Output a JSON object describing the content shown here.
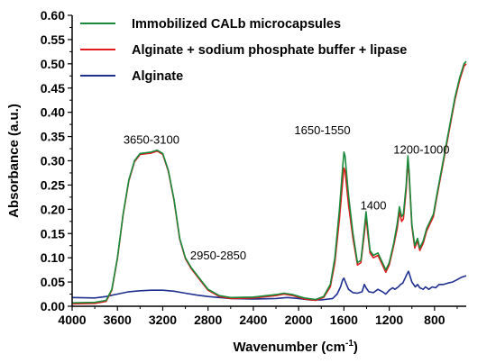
{
  "chart_data": {
    "type": "line",
    "xlabel_main": "Wavenumber (cm",
    "xlabel_sup": "-1",
    "xlabel_end": ")",
    "ylabel": "Absorbance (a.u.)",
    "xlim": [
      4000,
      520
    ],
    "ylim": [
      0,
      0.6
    ],
    "x_reversed": true,
    "xticks": [
      4000,
      3600,
      3200,
      2800,
      2400,
      2000,
      1600,
      1200,
      800
    ],
    "yticks": [
      0.0,
      0.05,
      0.1,
      0.15,
      0.2,
      0.25,
      0.3,
      0.35,
      0.4,
      0.45,
      0.5,
      0.55,
      0.6
    ],
    "xtick_labels": [
      "4000",
      "3600",
      "3200",
      "2800",
      "2400",
      "2000",
      "1600",
      "1200",
      "800"
    ],
    "ytick_labels": [
      "0.00",
      "0.05",
      "0.10",
      "0.15",
      "0.20",
      "0.25",
      "0.30",
      "0.35",
      "0.40",
      "0.45",
      "0.50",
      "0.55",
      "0.60"
    ],
    "legend_position": "top-right",
    "series": [
      {
        "name": "Immobilized CALb microcapsules",
        "color": "#1a8a3c",
        "points": [
          [
            4000,
            0.007
          ],
          [
            3800,
            0.008
          ],
          [
            3700,
            0.012
          ],
          [
            3650,
            0.035
          ],
          [
            3600,
            0.1
          ],
          [
            3550,
            0.19
          ],
          [
            3500,
            0.26
          ],
          [
            3450,
            0.3
          ],
          [
            3400,
            0.315
          ],
          [
            3300,
            0.318
          ],
          [
            3250,
            0.322
          ],
          [
            3200,
            0.315
          ],
          [
            3150,
            0.28
          ],
          [
            3100,
            0.22
          ],
          [
            3050,
            0.14
          ],
          [
            3000,
            0.1
          ],
          [
            2950,
            0.08
          ],
          [
            2900,
            0.065
          ],
          [
            2850,
            0.05
          ],
          [
            2800,
            0.035
          ],
          [
            2700,
            0.022
          ],
          [
            2600,
            0.018
          ],
          [
            2400,
            0.019
          ],
          [
            2200,
            0.024
          ],
          [
            2130,
            0.027
          ],
          [
            2050,
            0.024
          ],
          [
            1950,
            0.017
          ],
          [
            1850,
            0.014
          ],
          [
            1780,
            0.02
          ],
          [
            1720,
            0.045
          ],
          [
            1680,
            0.1
          ],
          [
            1640,
            0.2
          ],
          [
            1610,
            0.29
          ],
          [
            1600,
            0.318
          ],
          [
            1590,
            0.31
          ],
          [
            1560,
            0.23
          ],
          [
            1520,
            0.15
          ],
          [
            1480,
            0.09
          ],
          [
            1450,
            0.095
          ],
          [
            1420,
            0.16
          ],
          [
            1405,
            0.195
          ],
          [
            1390,
            0.16
          ],
          [
            1370,
            0.115
          ],
          [
            1340,
            0.105
          ],
          [
            1300,
            0.11
          ],
          [
            1260,
            0.09
          ],
          [
            1230,
            0.075
          ],
          [
            1200,
            0.09
          ],
          [
            1160,
            0.13
          ],
          [
            1130,
            0.17
          ],
          [
            1110,
            0.205
          ],
          [
            1090,
            0.185
          ],
          [
            1075,
            0.19
          ],
          [
            1050,
            0.25
          ],
          [
            1035,
            0.31
          ],
          [
            1025,
            0.28
          ],
          [
            1000,
            0.17
          ],
          [
            975,
            0.125
          ],
          [
            950,
            0.14
          ],
          [
            930,
            0.12
          ],
          [
            900,
            0.135
          ],
          [
            870,
            0.16
          ],
          [
            840,
            0.175
          ],
          [
            810,
            0.19
          ],
          [
            780,
            0.23
          ],
          [
            740,
            0.28
          ],
          [
            700,
            0.33
          ],
          [
            660,
            0.38
          ],
          [
            620,
            0.43
          ],
          [
            580,
            0.47
          ],
          [
            540,
            0.5
          ],
          [
            520,
            0.505
          ]
        ]
      },
      {
        "name": "Alginate + sodium phosphate buffer + lipase",
        "color": "#e31a1c",
        "points": [
          [
            4000,
            0.005
          ],
          [
            3800,
            0.006
          ],
          [
            3700,
            0.01
          ],
          [
            3650,
            0.033
          ],
          [
            3600,
            0.098
          ],
          [
            3550,
            0.188
          ],
          [
            3500,
            0.258
          ],
          [
            3450,
            0.298
          ],
          [
            3400,
            0.313
          ],
          [
            3300,
            0.316
          ],
          [
            3250,
            0.32
          ],
          [
            3200,
            0.313
          ],
          [
            3150,
            0.278
          ],
          [
            3100,
            0.218
          ],
          [
            3050,
            0.138
          ],
          [
            3000,
            0.098
          ],
          [
            2950,
            0.078
          ],
          [
            2900,
            0.063
          ],
          [
            2850,
            0.048
          ],
          [
            2800,
            0.033
          ],
          [
            2700,
            0.02
          ],
          [
            2600,
            0.016
          ],
          [
            2400,
            0.017
          ],
          [
            2200,
            0.022
          ],
          [
            2130,
            0.025
          ],
          [
            2050,
            0.022
          ],
          [
            1950,
            0.015
          ],
          [
            1850,
            0.012
          ],
          [
            1780,
            0.018
          ],
          [
            1720,
            0.04
          ],
          [
            1680,
            0.09
          ],
          [
            1640,
            0.18
          ],
          [
            1610,
            0.26
          ],
          [
            1600,
            0.285
          ],
          [
            1590,
            0.28
          ],
          [
            1560,
            0.21
          ],
          [
            1520,
            0.14
          ],
          [
            1480,
            0.085
          ],
          [
            1450,
            0.09
          ],
          [
            1420,
            0.15
          ],
          [
            1405,
            0.185
          ],
          [
            1390,
            0.15
          ],
          [
            1370,
            0.11
          ],
          [
            1340,
            0.1
          ],
          [
            1300,
            0.105
          ],
          [
            1260,
            0.085
          ],
          [
            1230,
            0.07
          ],
          [
            1200,
            0.085
          ],
          [
            1160,
            0.125
          ],
          [
            1130,
            0.16
          ],
          [
            1110,
            0.195
          ],
          [
            1090,
            0.175
          ],
          [
            1075,
            0.18
          ],
          [
            1050,
            0.24
          ],
          [
            1035,
            0.3
          ],
          [
            1025,
            0.27
          ],
          [
            1000,
            0.165
          ],
          [
            975,
            0.12
          ],
          [
            950,
            0.135
          ],
          [
            930,
            0.115
          ],
          [
            900,
            0.13
          ],
          [
            870,
            0.155
          ],
          [
            840,
            0.17
          ],
          [
            810,
            0.185
          ],
          [
            780,
            0.225
          ],
          [
            740,
            0.275
          ],
          [
            700,
            0.325
          ],
          [
            660,
            0.375
          ],
          [
            620,
            0.425
          ],
          [
            580,
            0.465
          ],
          [
            540,
            0.495
          ],
          [
            520,
            0.5
          ]
        ]
      },
      {
        "name": "Alginate",
        "color": "#1f2f8f",
        "points": [
          [
            4000,
            0.018
          ],
          [
            3800,
            0.017
          ],
          [
            3700,
            0.02
          ],
          [
            3600,
            0.025
          ],
          [
            3500,
            0.03
          ],
          [
            3400,
            0.032
          ],
          [
            3300,
            0.033
          ],
          [
            3200,
            0.033
          ],
          [
            3100,
            0.031
          ],
          [
            3000,
            0.027
          ],
          [
            2900,
            0.023
          ],
          [
            2800,
            0.02
          ],
          [
            2700,
            0.018
          ],
          [
            2600,
            0.016
          ],
          [
            2400,
            0.015
          ],
          [
            2200,
            0.016
          ],
          [
            2100,
            0.018
          ],
          [
            2000,
            0.016
          ],
          [
            1900,
            0.013
          ],
          [
            1800,
            0.013
          ],
          [
            1700,
            0.016
          ],
          [
            1660,
            0.025
          ],
          [
            1630,
            0.04
          ],
          [
            1610,
            0.055
          ],
          [
            1600,
            0.058
          ],
          [
            1590,
            0.052
          ],
          [
            1560,
            0.035
          ],
          [
            1520,
            0.028
          ],
          [
            1480,
            0.027
          ],
          [
            1440,
            0.03
          ],
          [
            1420,
            0.045
          ],
          [
            1405,
            0.038
          ],
          [
            1380,
            0.03
          ],
          [
            1340,
            0.028
          ],
          [
            1300,
            0.035
          ],
          [
            1260,
            0.03
          ],
          [
            1230,
            0.025
          ],
          [
            1200,
            0.033
          ],
          [
            1170,
            0.038
          ],
          [
            1150,
            0.035
          ],
          [
            1120,
            0.04
          ],
          [
            1100,
            0.045
          ],
          [
            1080,
            0.048
          ],
          [
            1060,
            0.058
          ],
          [
            1040,
            0.068
          ],
          [
            1030,
            0.072
          ],
          [
            1020,
            0.065
          ],
          [
            1000,
            0.05
          ],
          [
            970,
            0.04
          ],
          [
            950,
            0.045
          ],
          [
            930,
            0.038
          ],
          [
            900,
            0.035
          ],
          [
            880,
            0.04
          ],
          [
            850,
            0.035
          ],
          [
            820,
            0.04
          ],
          [
            790,
            0.038
          ],
          [
            760,
            0.045
          ],
          [
            720,
            0.045
          ],
          [
            680,
            0.048
          ],
          [
            640,
            0.05
          ],
          [
            600,
            0.055
          ],
          [
            560,
            0.06
          ],
          [
            520,
            0.063
          ]
        ]
      }
    ],
    "annotations": [
      {
        "text": "3650-3100",
        "x": 3300,
        "y": 0.335
      },
      {
        "text": "2950-2850",
        "x": 2710,
        "y": 0.097
      },
      {
        "text": "1650-1550",
        "x": 1790,
        "y": 0.355
      },
      {
        "text": "1400",
        "x": 1340,
        "y": 0.2
      },
      {
        "text": "1200-1000",
        "x": 915,
        "y": 0.315
      }
    ]
  }
}
